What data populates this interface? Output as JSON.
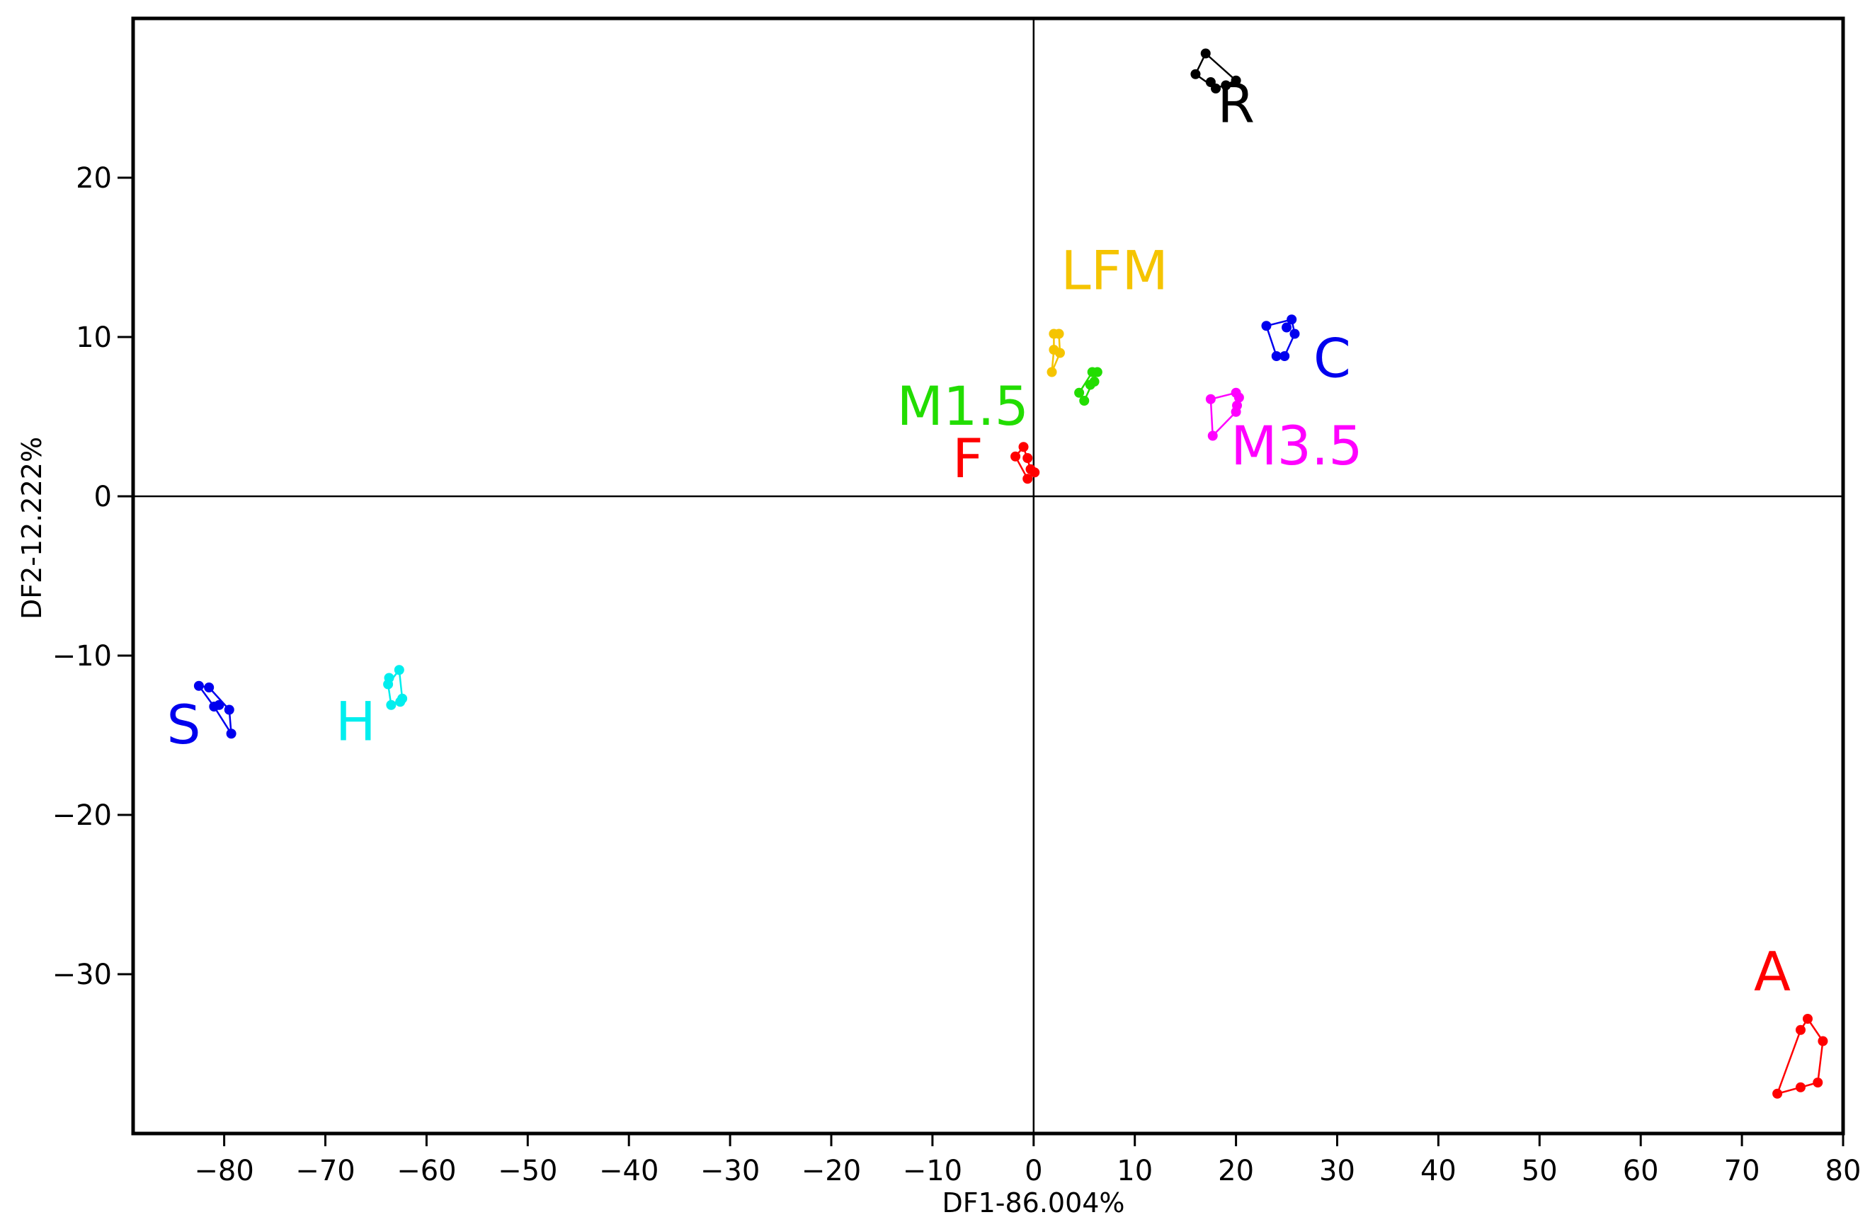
{
  "chart_data": {
    "type": "scatter",
    "title": "",
    "xlabel": "DF1-86.004%",
    "ylabel": "DF2-12.222%",
    "xlim": [
      -89,
      80
    ],
    "ylim": [
      -40,
      30
    ],
    "xticks": [
      -80,
      -70,
      -60,
      -50,
      -40,
      -30,
      -20,
      -10,
      0,
      10,
      20,
      30,
      40,
      50,
      60,
      70,
      80
    ],
    "xtick_labels": [
      "−80",
      "−70",
      "−60",
      "−50",
      "−40",
      "−30",
      "−20",
      "−10",
      "0",
      "10",
      "20",
      "30",
      "40",
      "50",
      "60",
      "70",
      "80"
    ],
    "yticks": [
      -30,
      -20,
      -10,
      0,
      10,
      20
    ],
    "ytick_labels": [
      "−30",
      "−20",
      "−10",
      "0",
      "10",
      "20"
    ],
    "reference_lines": {
      "x": 0,
      "y": 0
    },
    "grid": false,
    "legend": "none",
    "series": [
      {
        "name": "R",
        "color": "#000000",
        "label_at": [
          20,
          23.5
        ],
        "points": [
          [
            17,
            27.8
          ],
          [
            16,
            26.5
          ],
          [
            17.5,
            26
          ],
          [
            18,
            25.6
          ],
          [
            19,
            25.8
          ],
          [
            20,
            26.1
          ]
        ],
        "hull": [
          [
            17,
            27.8
          ],
          [
            20,
            26.1
          ],
          [
            18,
            25.6
          ],
          [
            16,
            26.5
          ]
        ]
      },
      {
        "name": "LFM",
        "color": "#F5C400",
        "label_at": [
          8,
          13
        ],
        "points": [
          [
            2,
            10.2
          ],
          [
            2.5,
            10.2
          ],
          [
            2,
            9.2
          ],
          [
            2.6,
            9
          ],
          [
            1.8,
            7.8
          ]
        ],
        "hull": [
          [
            2,
            10.2
          ],
          [
            2.5,
            10.2
          ],
          [
            2.6,
            9
          ],
          [
            1.8,
            7.8
          ],
          [
            2,
            9.2
          ]
        ]
      },
      {
        "name": "C",
        "color": "#0000EE",
        "label_at": [
          29.5,
          7.5
        ],
        "points": [
          [
            23,
            10.7
          ],
          [
            25.5,
            11.1
          ],
          [
            25,
            10.6
          ],
          [
            25.8,
            10.2
          ],
          [
            24,
            8.8
          ],
          [
            24.8,
            8.8
          ]
        ],
        "hull": [
          [
            23,
            10.7
          ],
          [
            25.5,
            11.1
          ],
          [
            25.8,
            10.2
          ],
          [
            24.8,
            8.8
          ],
          [
            24,
            8.8
          ]
        ]
      },
      {
        "name": "M1.5",
        "color": "#22DD00",
        "label_at": [
          -7,
          4.5
        ],
        "points": [
          [
            5.8,
            7.8
          ],
          [
            6.3,
            7.8
          ],
          [
            6,
            7.2
          ],
          [
            5.6,
            7
          ],
          [
            4.5,
            6.5
          ],
          [
            5,
            6
          ]
        ],
        "hull": [
          [
            5.8,
            7.8
          ],
          [
            6.3,
            7.8
          ],
          [
            5,
            6
          ],
          [
            4.5,
            6.5
          ]
        ]
      },
      {
        "name": "M3.5",
        "color": "#FF00FF",
        "label_at": [
          26,
          2
        ],
        "points": [
          [
            17.5,
            6.1
          ],
          [
            20,
            6.5
          ],
          [
            20.3,
            6.2
          ],
          [
            20.1,
            5.7
          ],
          [
            20,
            5.3
          ],
          [
            17.7,
            3.8
          ]
        ],
        "hull": [
          [
            17.5,
            6.1
          ],
          [
            20,
            6.5
          ],
          [
            20.3,
            6.2
          ],
          [
            20,
            5.3
          ],
          [
            17.7,
            3.8
          ]
        ]
      },
      {
        "name": "F",
        "color": "#FF0000",
        "label_at": [
          -6.5,
          1.2
        ],
        "points": [
          [
            -1,
            3.1
          ],
          [
            -1.8,
            2.5
          ],
          [
            -0.6,
            2.4
          ],
          [
            -0.3,
            1.7
          ],
          [
            0.1,
            1.5
          ],
          [
            -0.6,
            1.1
          ]
        ],
        "hull": [
          [
            -1,
            3.1
          ],
          [
            -0.3,
            1.7
          ],
          [
            0.1,
            1.5
          ],
          [
            -0.6,
            1.1
          ],
          [
            -1.8,
            2.5
          ]
        ]
      },
      {
        "name": "S",
        "color": "#0000EE",
        "label_at": [
          -84,
          -15.5
        ],
        "points": [
          [
            -82.5,
            -11.9
          ],
          [
            -81.5,
            -12
          ],
          [
            -80.5,
            -13.1
          ],
          [
            -79.5,
            -13.4
          ],
          [
            -79.3,
            -14.9
          ],
          [
            -81,
            -13.2
          ]
        ],
        "hull": [
          [
            -82.5,
            -11.9
          ],
          [
            -81.5,
            -12
          ],
          [
            -79.5,
            -13.4
          ],
          [
            -79.3,
            -14.9
          ],
          [
            -81,
            -13.2
          ]
        ]
      },
      {
        "name": "H",
        "color": "#00EEEE",
        "label_at": [
          -67,
          -15.3
        ],
        "points": [
          [
            -62.7,
            -10.9
          ],
          [
            -63.7,
            -11.4
          ],
          [
            -63.8,
            -11.8
          ],
          [
            -62.4,
            -12.7
          ],
          [
            -62.6,
            -12.9
          ],
          [
            -63.5,
            -13.1
          ]
        ],
        "hull": [
          [
            -62.7,
            -10.9
          ],
          [
            -62.4,
            -12.7
          ],
          [
            -63.5,
            -13.1
          ],
          [
            -63.8,
            -11.8
          ]
        ]
      },
      {
        "name": "A",
        "color": "#FF0000",
        "label_at": [
          73,
          -31
        ],
        "points": [
          [
            76.5,
            -32.8
          ],
          [
            75.8,
            -33.5
          ],
          [
            78,
            -34.2
          ],
          [
            77.5,
            -36.8
          ],
          [
            75.8,
            -37.1
          ],
          [
            73.5,
            -37.5
          ]
        ],
        "hull": [
          [
            76.5,
            -32.8
          ],
          [
            78,
            -34.2
          ],
          [
            77.5,
            -36.8
          ],
          [
            75.8,
            -37.1
          ],
          [
            73.5,
            -37.5
          ],
          [
            75.8,
            -33.5
          ]
        ]
      }
    ]
  }
}
